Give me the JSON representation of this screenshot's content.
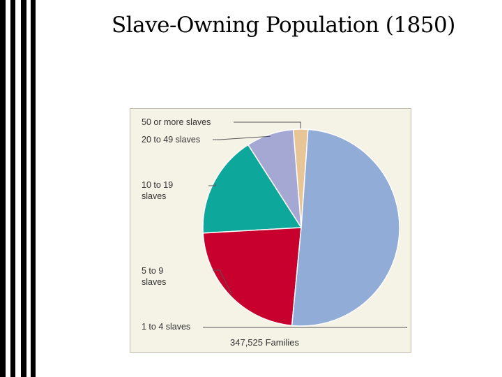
{
  "slide": {
    "title": "Slave-Owning Population (1850)"
  },
  "chart_data": {
    "type": "pie",
    "caption": "347,525 Families",
    "slices": [
      {
        "label": "50 or more slaves",
        "value": 2.4,
        "color": "#e8c596"
      },
      {
        "label": "20 to 49 slaves",
        "value": 7.8,
        "color": "#a6a8d4"
      },
      {
        "label": "10 to 19 slaves",
        "value": 16.8,
        "color": "#0da79b"
      },
      {
        "label": "5 to 9 slaves",
        "value": 22.6,
        "color": "#c8002d"
      },
      {
        "label": "1 to 4 slaves",
        "value": 50.4,
        "color": "#92acd8"
      }
    ],
    "legend": "left, with leader lines"
  }
}
